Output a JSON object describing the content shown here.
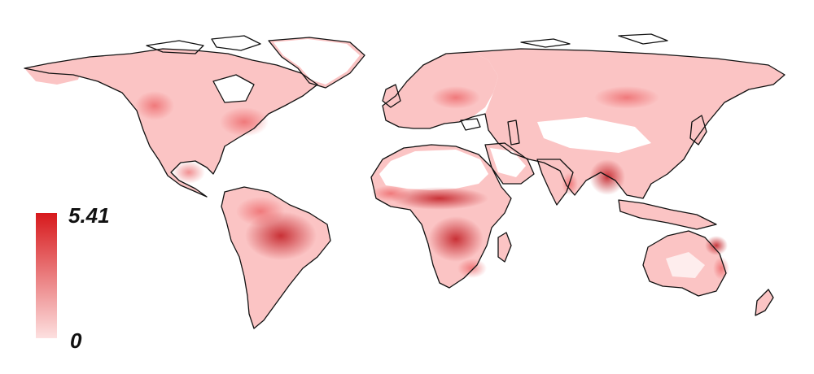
{
  "map": {
    "projection": "equirectangular-world",
    "color_scale": {
      "max_label": "5.41",
      "min_label": "0",
      "max_value": 5.41,
      "min_value": 0,
      "max_color": "#d7191c",
      "min_color": "#fde0e0"
    },
    "base_fill_color": "#fbc4c4",
    "coastline_color": "#111111",
    "hotspot_color": "#c0171d"
  }
}
